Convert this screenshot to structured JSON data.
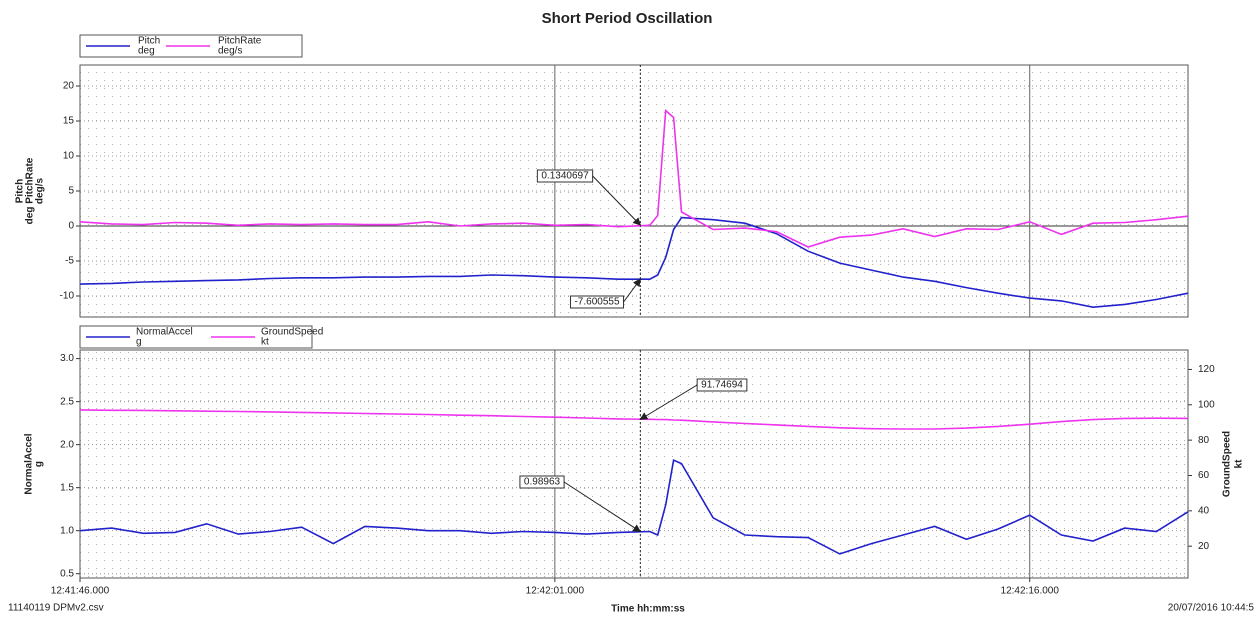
{
  "title": "Short Period Oscillation",
  "footer": {
    "left": "11140119 DPMv2.csv",
    "right": "20/07/2016 10:44:5"
  },
  "chart_data": [
    {
      "type": "line",
      "ylabel": [
        "Pitch",
        "deg PitchRate",
        "deg/s"
      ],
      "x": [
        "12:41:46.000",
        "12:41:47.000",
        "12:41:48.000",
        "12:41:49.000",
        "12:41:50.000",
        "12:41:51.000",
        "12:41:52.000",
        "12:41:53.000",
        "12:41:54.000",
        "12:41:55.000",
        "12:41:56.000",
        "12:41:57.000",
        "12:41:58.000",
        "12:41:59.000",
        "12:42:00.000",
        "12:42:01.000",
        "12:42:02.000",
        "12:42:03.000",
        "12:42:04.000",
        "12:42:04.250",
        "12:42:04.500",
        "12:42:04.750",
        "12:42:05.000",
        "12:42:06.000",
        "12:42:07.000",
        "12:42:08.000",
        "12:42:09.000",
        "12:42:10.000",
        "12:42:11.000",
        "12:42:12.000",
        "12:42:13.000",
        "12:42:14.000",
        "12:42:15.000",
        "12:42:16.000",
        "12:42:17.000",
        "12:42:18.000",
        "12:42:19.000",
        "12:42:20.000",
        "12:42:21.000"
      ],
      "xlim": [
        "12:41:46.000",
        "12:42:21.000"
      ],
      "xticks": [
        "12:41:46.000",
        "12:42:01.000",
        "12:42:16.000"
      ],
      "ylim": [
        -13,
        23
      ],
      "yticks": [
        -10,
        -5,
        0,
        5,
        10,
        15,
        20
      ],
      "cursor": "12:42:03.700",
      "series": [
        {
          "name": "Pitch",
          "unit": "deg",
          "color": "#2222cc",
          "cursor_value": -7.600555,
          "values": [
            -8.3,
            -8.2,
            -8.0,
            -7.9,
            -7.8,
            -7.7,
            -7.5,
            -7.4,
            -7.4,
            -7.3,
            -7.3,
            -7.2,
            -7.2,
            -7.0,
            -7.1,
            -7.3,
            -7.4,
            -7.6,
            -7.6,
            -7.0,
            -4.5,
            -0.5,
            1.2,
            0.9,
            0.4,
            -1.1,
            -3.6,
            -5.3,
            -6.3,
            -7.3,
            -7.9,
            -8.8,
            -9.6,
            -10.3,
            -10.7,
            -11.6,
            -11.2,
            -10.5,
            -9.6
          ]
        },
        {
          "name": "PitchRate",
          "unit": "deg/s",
          "color": "#ee33ee",
          "cursor_value": 0.1340697,
          "values": [
            0.6,
            0.3,
            0.2,
            0.5,
            0.4,
            0.1,
            0.3,
            0.2,
            0.3,
            0.2,
            0.2,
            0.6,
            0.0,
            0.3,
            0.4,
            0.1,
            0.2,
            -0.1,
            0.1,
            1.5,
            16.5,
            15.5,
            2.0,
            -0.5,
            -0.3,
            -0.8,
            -3.0,
            -1.6,
            -1.3,
            -0.4,
            -1.5,
            -0.4,
            -0.5,
            0.6,
            -1.2,
            0.4,
            0.5,
            0.9,
            1.4
          ]
        }
      ]
    },
    {
      "type": "line",
      "ylabel": [
        "NormalAccel",
        "g"
      ],
      "y2label": [
        "GroundSpeed",
        "kt"
      ],
      "xlabel": "Time hh:mm:ss",
      "x": [
        "12:41:46.000",
        "12:41:47.000",
        "12:41:48.000",
        "12:41:49.000",
        "12:41:50.000",
        "12:41:51.000",
        "12:41:52.000",
        "12:41:53.000",
        "12:41:54.000",
        "12:41:55.000",
        "12:41:56.000",
        "12:41:57.000",
        "12:41:58.000",
        "12:41:59.000",
        "12:42:00.000",
        "12:42:01.000",
        "12:42:02.000",
        "12:42:03.000",
        "12:42:04.000",
        "12:42:04.250",
        "12:42:04.500",
        "12:42:04.750",
        "12:42:05.000",
        "12:42:06.000",
        "12:42:07.000",
        "12:42:08.000",
        "12:42:09.000",
        "12:42:10.000",
        "12:42:11.000",
        "12:42:12.000",
        "12:42:13.000",
        "12:42:14.000",
        "12:42:15.000",
        "12:42:16.000",
        "12:42:17.000",
        "12:42:18.000",
        "12:42:19.000",
        "12:42:20.000",
        "12:42:21.000"
      ],
      "xlim": [
        "12:41:46.000",
        "12:42:21.000"
      ],
      "xticks": [
        "12:41:46.000",
        "12:42:01.000",
        "12:42:16.000"
      ],
      "ylim": [
        0.45,
        3.1
      ],
      "yticks": [
        0.5,
        {
          "value": 1,
          "label": "1.0"
        },
        1.5,
        {
          "value": 2,
          "label": "2.0"
        },
        2.5,
        {
          "value": 3,
          "label": "3.0"
        }
      ],
      "y2lim": [
        2,
        131
      ],
      "y2ticks": [
        20,
        40,
        60,
        80,
        100,
        120
      ],
      "cursor": "12:42:03.700",
      "series": [
        {
          "name": "NormalAccel",
          "unit": "g",
          "color": "#2222cc",
          "cursor_value": 0.98963,
          "values": [
            1,
            1.03,
            0.97,
            0.98,
            1.08,
            0.96,
            0.99,
            1.04,
            0.85,
            1.05,
            1.03,
            1,
            1,
            0.97,
            0.99,
            0.98,
            0.96,
            0.98,
            0.99,
            0.95,
            1.3,
            1.82,
            1.78,
            1.15,
            0.95,
            0.93,
            0.92,
            0.73,
            0.85,
            0.95,
            1.05,
            0.9,
            1.02,
            1.18,
            0.95,
            0.88,
            1.03,
            0.99,
            1.22
          ]
        },
        {
          "name": "GroundSpeed",
          "unit": "kt",
          "color": "#ee33ee",
          "axis": "y2",
          "cursor_value": 91.74694,
          "values": [
            97.1,
            96.9,
            96.8,
            96.6,
            96.4,
            96.2,
            96.0,
            95.7,
            95.4,
            95.1,
            94.8,
            94.5,
            94.1,
            93.8,
            93.4,
            93.0,
            92.5,
            92.0,
            91.8,
            91.7,
            91.6,
            91.4,
            91.3,
            90.3,
            89.4,
            88.6,
            87.8,
            87.0,
            86.5,
            86.3,
            86.3,
            86.8,
            87.8,
            89.0,
            90.5,
            91.6,
            92.3,
            92.4,
            92.3
          ]
        }
      ]
    }
  ]
}
